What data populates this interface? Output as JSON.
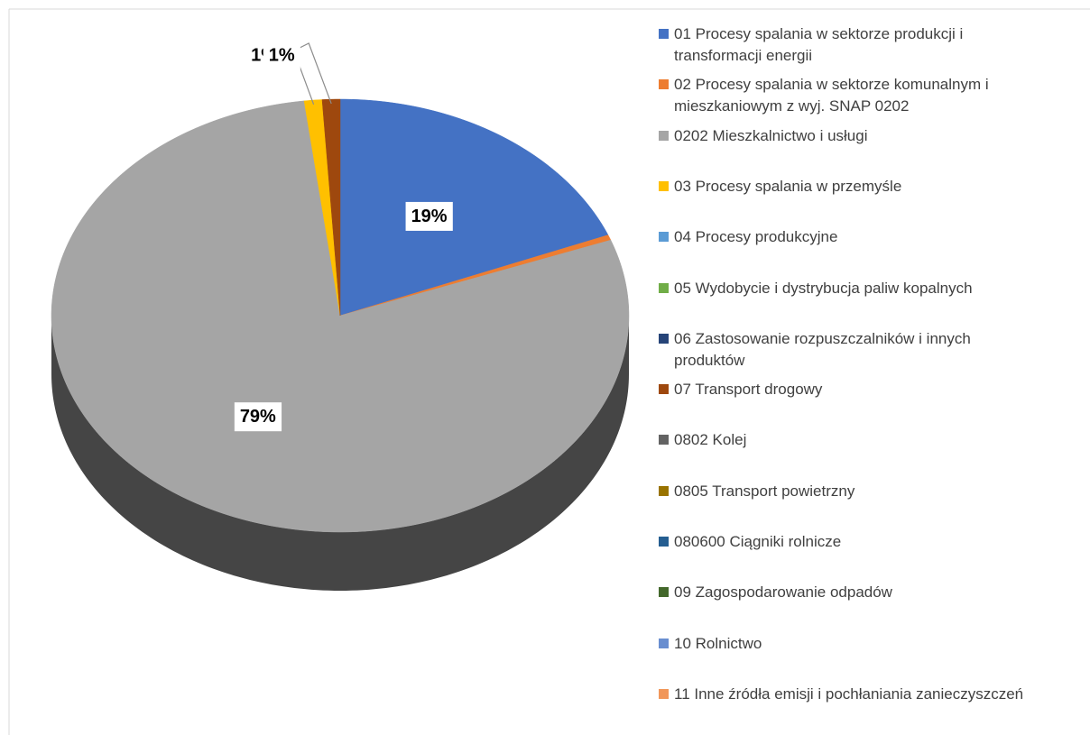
{
  "chart_data": {
    "type": "pie",
    "categories": [
      "01 Procesy spalania w sektorze produkcji i transformacji energii",
      "02 Procesy spalania w sektorze komunalnym i mieszkaniowym z wyj. SNAP 0202",
      "0202 Mieszkalnictwo i usługi",
      "03 Procesy spalania w przemyśle",
      "04 Procesy produkcyjne",
      "05 Wydobycie i dystrybucja paliw kopalnych",
      "06 Zastosowanie rozpuszczalników i innych produktów",
      "07 Transport drogowy",
      "0802 Kolej",
      "0805 Transport powietrzny",
      "080600 Ciągniki rolnicze",
      "09 Zagospodarowanie odpadów",
      "10 Rolnictwo",
      "11 Inne źródła emisji i pochłaniania zanieczyszczeń"
    ],
    "values": [
      19,
      0.4,
      79,
      1,
      0,
      0,
      0,
      1,
      0,
      0,
      0,
      0,
      0,
      0
    ],
    "value_labels": [
      "19%",
      null,
      "79%",
      "1%",
      null,
      null,
      null,
      "1%",
      null,
      null,
      null,
      null,
      null,
      null
    ],
    "colors": [
      "#4472c4",
      "#ed7d31",
      "#a5a5a5",
      "#ffc000",
      "#5b9bd5",
      "#70ad47",
      "#264478",
      "#9e480e",
      "#636363",
      "#997300",
      "#255e91",
      "#43682b",
      "#698ed0",
      "#f1975a"
    ],
    "legend": "right"
  }
}
